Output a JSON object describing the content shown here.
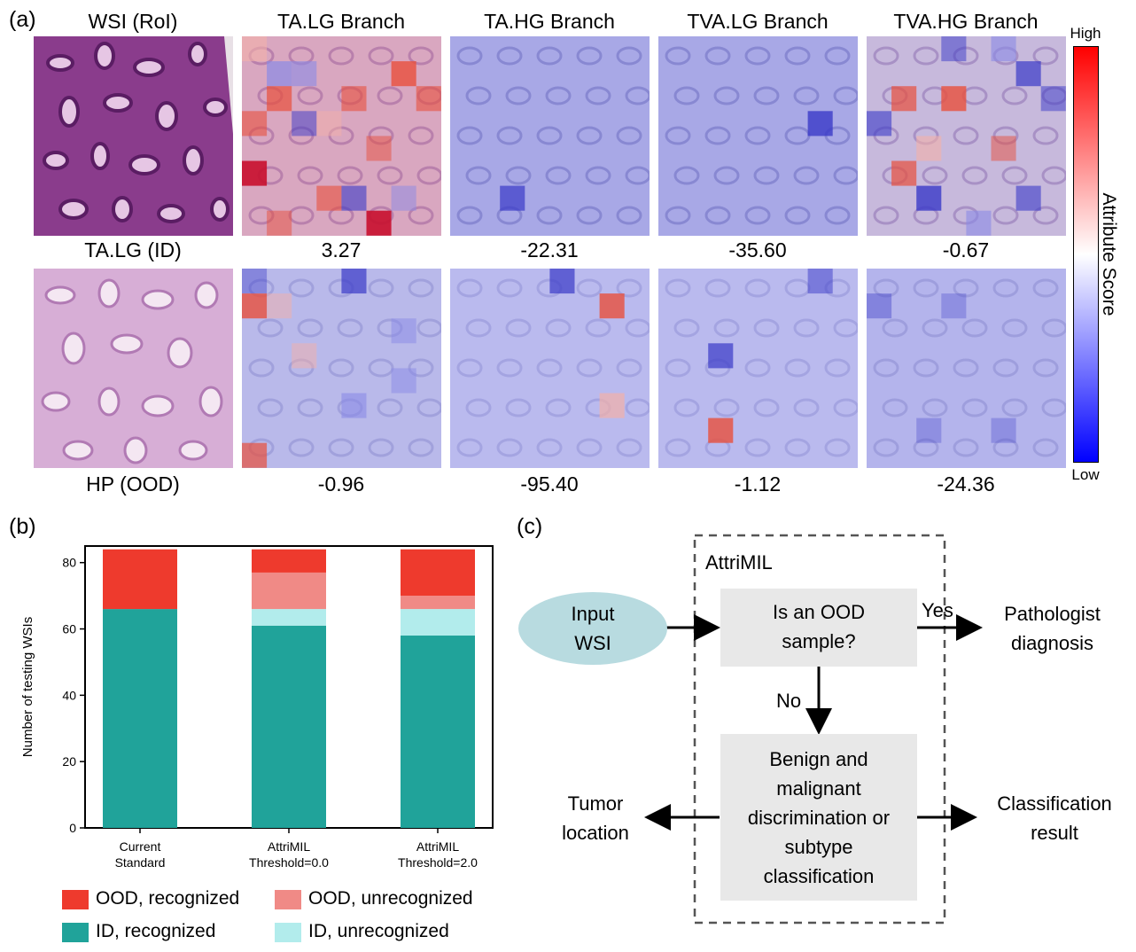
{
  "panels": {
    "a": "(a)",
    "b": "(b)",
    "c": "(c)"
  },
  "heatmaps": {
    "columns": [
      "WSI (RoI)",
      "TA.LG Branch",
      "TA.HG Branch",
      "TVA.LG Branch",
      "TVA.HG Branch"
    ],
    "rows": [
      {
        "label": "TA.LG (ID)",
        "scores": [
          "3.27",
          "-22.31",
          "-35.60",
          "-0.67"
        ]
      },
      {
        "label": "HP (OOD)",
        "scores": [
          "-0.96",
          "-95.40",
          "-1.12",
          "-24.36"
        ]
      }
    ],
    "colorbar": {
      "high": "High",
      "low": "Low",
      "title": "Attribute Score",
      "high_color": "#ff0000",
      "low_color": "#0000ff"
    }
  },
  "chart_data": {
    "type": "bar",
    "stacked": true,
    "ylabel": "Number of testing WSIs",
    "xlabel": "",
    "ylim": [
      0,
      85
    ],
    "yticks": [
      "0",
      "20",
      "40",
      "60",
      "80"
    ],
    "categories": [
      "Current\nStandard",
      "AttriMIL\nThreshold=0.0",
      "AttriMIL\nThreshold=2.0"
    ],
    "series": [
      {
        "name": "ID, recognized",
        "color": "#20a39a",
        "values": [
          66,
          61,
          58
        ]
      },
      {
        "name": "ID, unrecognized",
        "color": "#b2ecec",
        "values": [
          0,
          5,
          8
        ]
      },
      {
        "name": "OOD, unrecognized",
        "color": "#f08a86",
        "values": [
          0,
          11,
          4
        ]
      },
      {
        "name": "OOD, recognized",
        "color": "#ee3a2d",
        "values": [
          18,
          7,
          14
        ]
      }
    ],
    "legend": [
      {
        "label": "OOD, recognized",
        "color": "#ee3a2d"
      },
      {
        "label": "OOD, unrecognized",
        "color": "#f08a86"
      },
      {
        "label": "ID, recognized",
        "color": "#20a39a"
      },
      {
        "label": "ID, unrecognized",
        "color": "#b2ecec"
      }
    ]
  },
  "flowchart": {
    "container": "AttriMIL",
    "input": [
      "Input",
      "WSI"
    ],
    "decision": [
      "Is an OOD",
      "sample?"
    ],
    "yes": "Yes",
    "no": "No",
    "pathologist": [
      "Pathologist",
      "diagnosis"
    ],
    "classify": [
      "Benign and",
      "malignant",
      "discrimination or",
      "subtype",
      "classification"
    ],
    "tumor": [
      "Tumor",
      "location"
    ],
    "result": [
      "Classification",
      "result"
    ],
    "ellipse_color": "#b8dbe0",
    "box_color": "#e8e8e8"
  }
}
